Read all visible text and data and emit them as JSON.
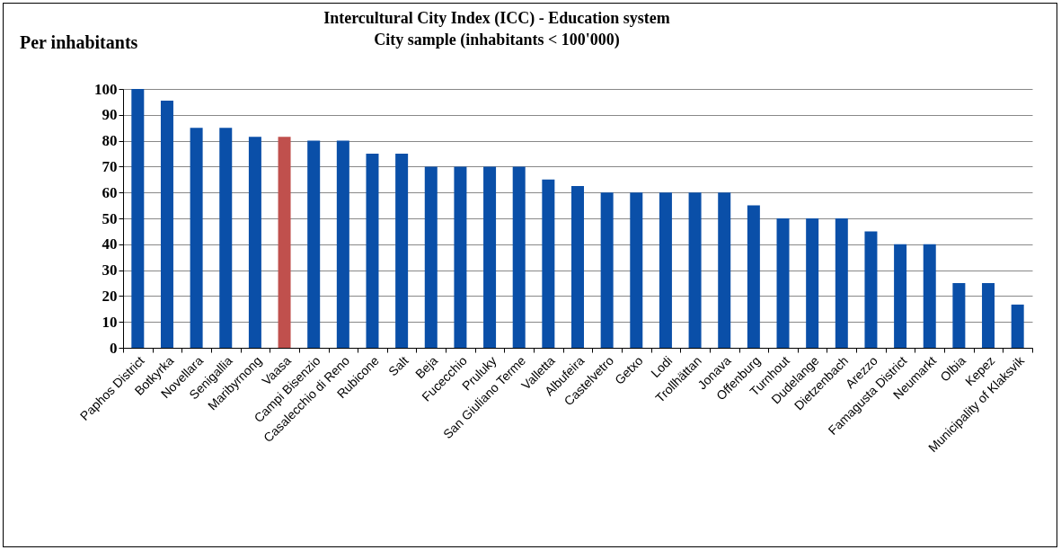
{
  "chart_data": {
    "type": "bar",
    "title": "Intercultural City Index (ICC) - Education system\nCity sample (inhabitants < 100'000)",
    "annotations": [
      "Per inhabitants"
    ],
    "categories": [
      "Paphos District",
      "Botkyrka",
      "Novellara",
      "Senigallia",
      "Maribyrnong",
      "Vaasa",
      "Campi Bisenzio",
      "Casalecchio di Reno",
      "Rubicone",
      "Salt",
      "Beja",
      "Fucecchio",
      "Pruluky",
      "San Giuliano Terme",
      "Valletta",
      "Albufeira",
      "Castelvetro",
      "Getxo",
      "Lodi",
      "Trollhättan",
      "Jonava",
      "Offenburg",
      "Turnhout",
      "Dudelange",
      "Dietzenbach",
      "Arezzo",
      "Famagusta District",
      "Neumarkt",
      "Olbia",
      "Kepez",
      "Municipality of Klaksvik"
    ],
    "values": [
      100,
      95.5,
      85,
      85,
      81.5,
      81.5,
      80,
      80,
      75,
      75,
      70,
      70,
      70,
      70,
      65,
      62.5,
      60,
      60,
      60,
      60,
      60,
      55,
      50,
      50,
      50,
      45,
      40,
      40,
      25,
      25,
      16.7
    ],
    "colors": [
      "#0a4fa8",
      "#0a4fa8",
      "#0a4fa8",
      "#0a4fa8",
      "#0a4fa8",
      "#c0504d",
      "#0a4fa8",
      "#0a4fa8",
      "#0a4fa8",
      "#0a4fa8",
      "#0a4fa8",
      "#0a4fa8",
      "#0a4fa8",
      "#0a4fa8",
      "#0a4fa8",
      "#0a4fa8",
      "#0a4fa8",
      "#0a4fa8",
      "#0a4fa8",
      "#0a4fa8",
      "#0a4fa8",
      "#0a4fa8",
      "#0a4fa8",
      "#0a4fa8",
      "#0a4fa8",
      "#0a4fa8",
      "#0a4fa8",
      "#0a4fa8",
      "#0a4fa8",
      "#0a4fa8",
      "#0a4fa8"
    ],
    "ylim": [
      0,
      100
    ],
    "yticks": [
      0,
      10,
      20,
      30,
      40,
      50,
      60,
      70,
      80,
      90,
      100
    ],
    "grid": "y"
  }
}
